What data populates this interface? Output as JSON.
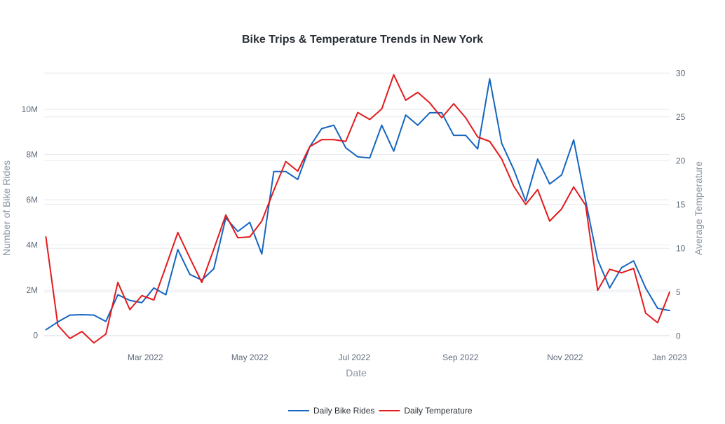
{
  "chart_data": {
    "type": "line",
    "title": "Bike Trips & Temperature Trends in New York",
    "xlabel": "Date",
    "ylabel": "Number of Bike Rides",
    "y2label": "Average Temperature",
    "x_ticks": [
      {
        "date": "2022-03-01",
        "label": "Mar 2022"
      },
      {
        "date": "2022-05-01",
        "label": "May 2022"
      },
      {
        "date": "2022-07-01",
        "label": "Jul 2022"
      },
      {
        "date": "2022-09-01",
        "label": "Sep 2022"
      },
      {
        "date": "2022-11-01",
        "label": "Nov 2022"
      },
      {
        "date": "2023-01-01",
        "label": "Jan 2023"
      }
    ],
    "xlim": [
      "2022-01-01",
      "2023-01-01"
    ],
    "ylim": [
      -600000,
      11800000
    ],
    "y_ticks": [
      {
        "value": 0,
        "label": "0"
      },
      {
        "value": 2000000,
        "label": "2M"
      },
      {
        "value": 4000000,
        "label": "4M"
      },
      {
        "value": 6000000,
        "label": "6M"
      },
      {
        "value": 8000000,
        "label": "8M"
      },
      {
        "value": 10000000,
        "label": "10M"
      }
    ],
    "y2lim": [
      -1.5,
      30.5
    ],
    "y2_ticks": [
      {
        "value": 0,
        "label": "0"
      },
      {
        "value": 5,
        "label": "5"
      },
      {
        "value": 10,
        "label": "10"
      },
      {
        "value": 15,
        "label": "15"
      },
      {
        "value": 20,
        "label": "20"
      },
      {
        "value": 25,
        "label": "25"
      },
      {
        "value": 30,
        "label": "30"
      }
    ],
    "grid": true,
    "legend_position": "bottom-center",
    "x": [
      "2022-01-02",
      "2022-01-09",
      "2022-01-16",
      "2022-01-23",
      "2022-01-30",
      "2022-02-06",
      "2022-02-13",
      "2022-02-20",
      "2022-02-27",
      "2022-03-06",
      "2022-03-13",
      "2022-03-20",
      "2022-03-27",
      "2022-04-03",
      "2022-04-10",
      "2022-04-17",
      "2022-04-24",
      "2022-05-01",
      "2022-05-08",
      "2022-05-15",
      "2022-05-22",
      "2022-05-29",
      "2022-06-05",
      "2022-06-12",
      "2022-06-19",
      "2022-06-26",
      "2022-07-03",
      "2022-07-10",
      "2022-07-17",
      "2022-07-24",
      "2022-07-31",
      "2022-08-07",
      "2022-08-14",
      "2022-08-21",
      "2022-08-28",
      "2022-09-04",
      "2022-09-11",
      "2022-09-18",
      "2022-09-25",
      "2022-10-02",
      "2022-10-09",
      "2022-10-16",
      "2022-10-23",
      "2022-10-30",
      "2022-11-06",
      "2022-11-13",
      "2022-11-20",
      "2022-11-27",
      "2022-12-04",
      "2022-12-11",
      "2022-12-18",
      "2022-12-25",
      "2023-01-01"
    ],
    "series": [
      {
        "name": "Daily Bike Rides",
        "axis": "y",
        "color": "#1565c0",
        "values": [
          250000,
          600000,
          900000,
          920000,
          900000,
          620000,
          1800000,
          1550000,
          1450000,
          2100000,
          1800000,
          3800000,
          2700000,
          2450000,
          2950000,
          5200000,
          4600000,
          5000000,
          3600000,
          7250000,
          7250000,
          6900000,
          8350000,
          9150000,
          9300000,
          8300000,
          7900000,
          7850000,
          9300000,
          8150000,
          9750000,
          9300000,
          9850000,
          9850000,
          8850000,
          8850000,
          8250000,
          11350000,
          8500000,
          7350000,
          5950000,
          7800000,
          6700000,
          7100000,
          8650000,
          5950000,
          3350000,
          2100000,
          3000000,
          3300000,
          2100000,
          1200000,
          1100000
        ]
      },
      {
        "name": "Daily Temperature",
        "axis": "y2",
        "color": "#e31a1c",
        "values": [
          11.3,
          1.2,
          -0.3,
          0.5,
          -0.8,
          0.2,
          6.1,
          3,
          4.6,
          4.1,
          7.9,
          11.8,
          8.9,
          6.1,
          9.9,
          13.8,
          11.2,
          11.3,
          13.1,
          16.6,
          19.9,
          18.8,
          21.6,
          22.4,
          22.4,
          22.2,
          25.5,
          24.7,
          25.9,
          29.8,
          26.9,
          27.8,
          26.6,
          24.9,
          26.5,
          24.9,
          22.7,
          22.2,
          20.2,
          17.1,
          15,
          16.7,
          13.1,
          14.5,
          17,
          14.9,
          5.2,
          7.6,
          7.2,
          7.7,
          2.6,
          1.5,
          5
        ]
      }
    ]
  }
}
